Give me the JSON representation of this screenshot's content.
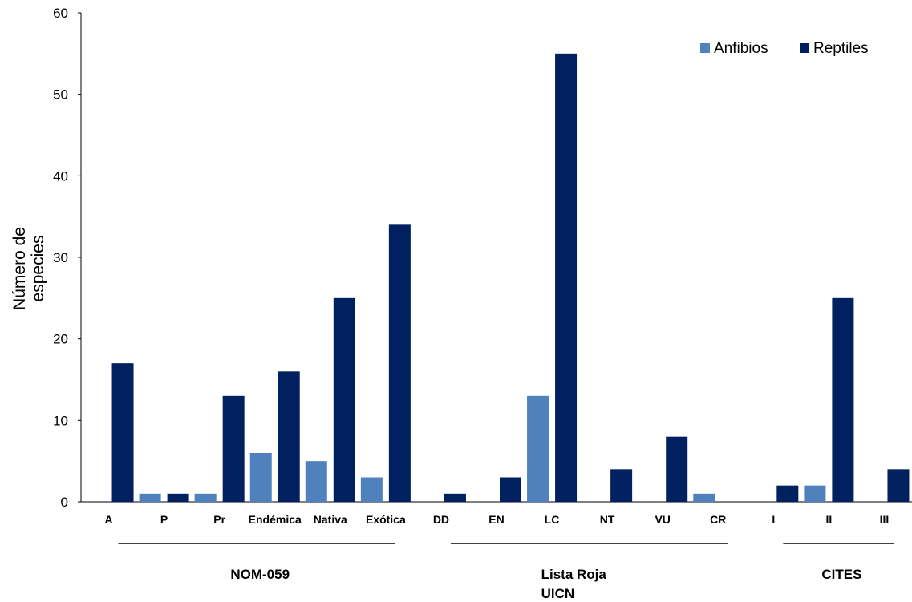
{
  "chart_data": {
    "type": "bar",
    "ylabel_lines": [
      "Número de",
      "especies"
    ],
    "ylim": [
      0,
      60
    ],
    "yticks": [
      0,
      10,
      20,
      30,
      40,
      50,
      60
    ],
    "grid": false,
    "legend_position": "top-right",
    "categories": [
      "A",
      "P",
      "Pr",
      "Endémica",
      "Nativa",
      "Exótica",
      "DD",
      "EN",
      "LC",
      "NT",
      "VU",
      "CR",
      "I",
      "II",
      "III"
    ],
    "series": [
      {
        "name": "Anfibios",
        "color": "#4f81bd",
        "values": [
          0,
          1,
          1,
          6,
          5,
          3,
          0,
          0,
          13,
          0,
          0,
          1,
          0,
          2,
          0
        ]
      },
      {
        "name": "Reptiles",
        "color": "#002060",
        "values": [
          17,
          1,
          13,
          16,
          25,
          34,
          1,
          3,
          55,
          4,
          8,
          0,
          2,
          25,
          4
        ]
      }
    ],
    "groups": [
      {
        "label_lines": [
          "NOM-059"
        ],
        "first": 0,
        "last": 5
      },
      {
        "label_lines": [
          "Lista Roja",
          "UICN"
        ],
        "first": 6,
        "last": 11
      },
      {
        "label_lines": [
          "CITES"
        ],
        "first": 12,
        "last": 14
      }
    ]
  }
}
